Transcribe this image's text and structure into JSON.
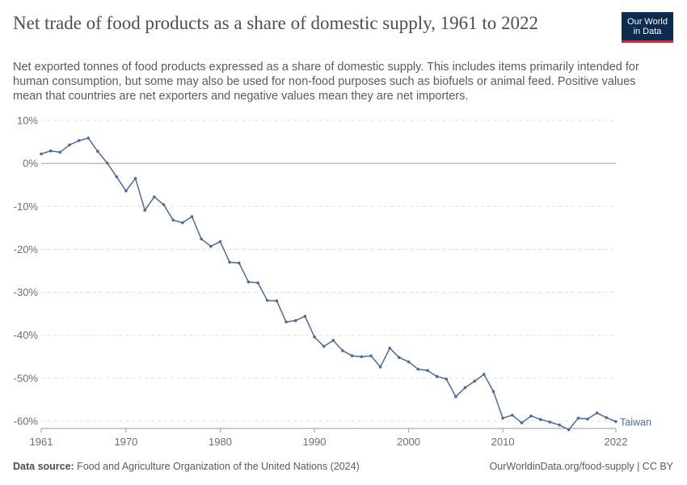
{
  "header": {
    "title": "Net trade of food products as a share of domestic supply, 1961 to 2022",
    "subtitle": "Net exported tonnes of food products expressed as a share of domestic supply. This includes items primarily intended for human consumption, but some may also be used for non-food purposes such as biofuels or animal feed. Positive values mean that countries are net exporters and negative values mean they are net importers."
  },
  "logo": {
    "line1": "Our World",
    "line2": "in Data",
    "bg_color": "#0d2a4f",
    "accent_color": "#d42b3a"
  },
  "footer": {
    "source_label": "Data source:",
    "source_text": "Food and Agriculture Organization of the United Nations (2024)",
    "right_text": "OurWorldinData.org/food-supply | CC BY"
  },
  "chart_data": {
    "type": "line",
    "title": "Net trade of food products as a share of domestic supply, 1961 to 2022",
    "xlabel": "",
    "ylabel": "",
    "xlim": [
      1961,
      2022
    ],
    "ylim": [
      -60,
      10
    ],
    "x_ticks": [
      1961,
      1970,
      1980,
      1990,
      2000,
      2010,
      2022
    ],
    "y_ticks": [
      10,
      0,
      -10,
      -20,
      -30,
      -40,
      -50,
      -60
    ],
    "y_tick_labels": [
      "10%",
      "0%",
      "-10%",
      "-20%",
      "-30%",
      "-40%",
      "-50%",
      "-60%"
    ],
    "grid": "horizontal-dashed",
    "line_color": "#4c6a9c",
    "series": [
      {
        "name": "Taiwan",
        "x": [
          1961,
          1962,
          1963,
          1964,
          1965,
          1966,
          1967,
          1968,
          1969,
          1970,
          1971,
          1972,
          1973,
          1974,
          1975,
          1976,
          1977,
          1978,
          1979,
          1980,
          1981,
          1982,
          1983,
          1984,
          1985,
          1986,
          1987,
          1988,
          1989,
          1990,
          1991,
          1992,
          1993,
          1994,
          1995,
          1996,
          1997,
          1998,
          1999,
          2000,
          2001,
          2002,
          2003,
          2004,
          2005,
          2006,
          2007,
          2008,
          2009,
          2010,
          2011,
          2012,
          2013,
          2014,
          2015,
          2016,
          2017,
          2018,
          2019,
          2020,
          2021,
          2022
        ],
        "values": [
          2.2,
          2.9,
          2.6,
          4.3,
          5.3,
          5.9,
          2.8,
          0.1,
          -3.1,
          -6.4,
          -3.5,
          -10.9,
          -7.8,
          -9.6,
          -13.2,
          -13.8,
          -12.4,
          -17.6,
          -19.3,
          -18.2,
          -23.0,
          -23.2,
          -27.6,
          -27.8,
          -31.9,
          -32.0,
          -36.9,
          -36.6,
          -35.6,
          -40.4,
          -42.6,
          -41.2,
          -43.6,
          -44.8,
          -45.0,
          -44.8,
          -47.4,
          -43.0,
          -45.2,
          -46.2,
          -47.9,
          -48.2,
          -49.6,
          -50.2,
          -54.3,
          -52.2,
          -50.7,
          -49.1,
          -53.1,
          -59.3,
          -58.6,
          -60.4,
          -58.8,
          -59.6,
          -60.2,
          -60.9,
          -62.0,
          -59.3,
          -59.5,
          -58.1,
          -59.2,
          -60.1
        ]
      }
    ]
  }
}
